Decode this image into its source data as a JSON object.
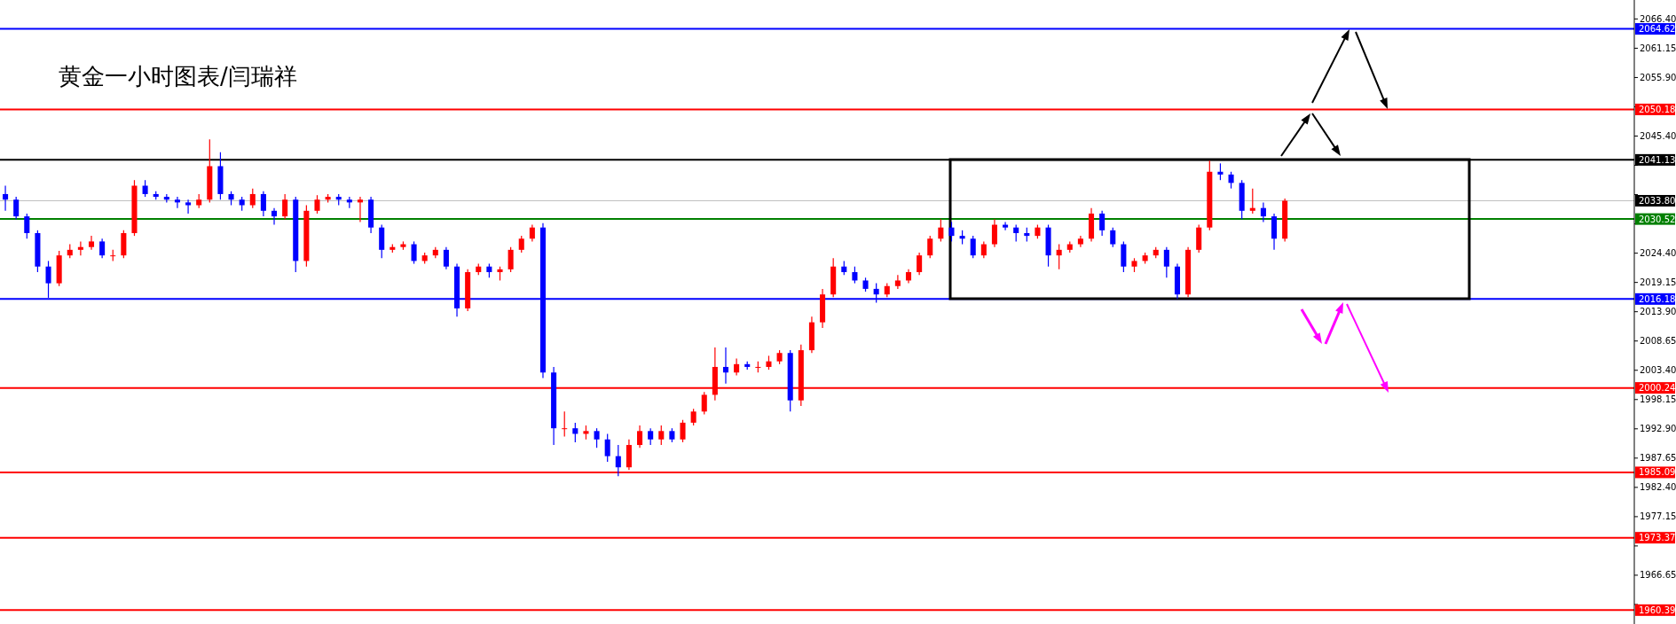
{
  "chart_data": {
    "type": "candlestick",
    "title": "黄金一小时图表/闫瑞祥",
    "categories": [
      null,
      null,
      null,
      null,
      null,
      null,
      null,
      null,
      null,
      null,
      null,
      null,
      null,
      null,
      null,
      null,
      null,
      null,
      null,
      null,
      null,
      null,
      null,
      null,
      null,
      null,
      null,
      null,
      null,
      null,
      null,
      null,
      null,
      null,
      null,
      null,
      null,
      null,
      null,
      null,
      null,
      null,
      null,
      null,
      null,
      null,
      null,
      null,
      null,
      null,
      null,
      null,
      null,
      null,
      null,
      null,
      null,
      null,
      null,
      null,
      null,
      null,
      null,
      null,
      null,
      null,
      null,
      null,
      null,
      null,
      null,
      null,
      null,
      null,
      null,
      null,
      null,
      null,
      null,
      null,
      null,
      null,
      null,
      null,
      null,
      null,
      null,
      null,
      null,
      null,
      null,
      null,
      null,
      null,
      null,
      null,
      null,
      null,
      null,
      null,
      null,
      null,
      null,
      null,
      null,
      null,
      null,
      null,
      null,
      null,
      null,
      null,
      null,
      null,
      null,
      null,
      null,
      null,
      null,
      null,
      null,
      null,
      null,
      null,
      null,
      null,
      null,
      null,
      null,
      null,
      null,
      null,
      null,
      null,
      null,
      null,
      null,
      null,
      null,
      null,
      null,
      null,
      null,
      null,
      null,
      null,
      null,
      null,
      null,
      null,
      null,
      null
    ],
    "ohlc": [
      [
        2035,
        2036.5,
        2032,
        2034
      ],
      [
        2034,
        2034.5,
        2030.5,
        2031
      ],
      [
        2031,
        2031.5,
        2027,
        2028
      ],
      [
        2028,
        2028.5,
        2021,
        2022
      ],
      [
        2022,
        2023,
        2016.4,
        2019
      ],
      [
        2019,
        2024.8,
        2018.5,
        2024
      ],
      [
        2024,
        2026,
        2023.5,
        2025
      ],
      [
        2025,
        2026.5,
        2024,
        2025.5
      ],
      [
        2025.5,
        2027.5,
        2025,
        2026.5
      ],
      [
        2026.5,
        2027,
        2023.5,
        2024
      ],
      [
        2024,
        2025,
        2023,
        2024
      ],
      [
        2024,
        2028.5,
        2023.5,
        2028
      ],
      [
        2028,
        2037.5,
        2027.5,
        2036.5
      ],
      [
        2036.5,
        2037.5,
        2034.5,
        2035
      ],
      [
        2035,
        2035.5,
        2034,
        2034.5
      ],
      [
        2034.5,
        2035,
        2033.5,
        2034
      ],
      [
        2034,
        2034.5,
        2032.5,
        2033.5
      ],
      [
        2033.5,
        2034,
        2031.5,
        2033
      ],
      [
        2033,
        2035,
        2032.5,
        2034
      ],
      [
        2034,
        2044.8,
        2033.5,
        2040
      ],
      [
        2040,
        2042.5,
        2034,
        2035
      ],
      [
        2035,
        2035.5,
        2033,
        2034
      ],
      [
        2034,
        2034.5,
        2032,
        2033
      ],
      [
        2033,
        2036,
        2032.5,
        2035
      ],
      [
        2035,
        2035.5,
        2031,
        2032
      ],
      [
        2032,
        2032.5,
        2029.5,
        2031
      ],
      [
        2031,
        2035,
        2030.5,
        2034
      ],
      [
        2034,
        2034.5,
        2021,
        2023
      ],
      [
        2023,
        2033,
        2022,
        2032
      ],
      [
        2032,
        2034.8,
        2031.5,
        2034
      ],
      [
        2034,
        2035,
        2033.5,
        2034.5
      ],
      [
        2034.5,
        2035,
        2033,
        2034
      ],
      [
        2034,
        2034.5,
        2032.5,
        2033.5
      ],
      [
        2033.5,
        2034.5,
        2030,
        2034
      ],
      [
        2034,
        2034.5,
        2028,
        2029
      ],
      [
        2029,
        2029.5,
        2023.5,
        2025
      ],
      [
        2025,
        2026,
        2024.5,
        2025.5
      ],
      [
        2025.5,
        2026.5,
        2025,
        2026
      ],
      [
        2026,
        2026.5,
        2022.5,
        2023
      ],
      [
        2023,
        2024.5,
        2022.5,
        2024
      ],
      [
        2024,
        2025.5,
        2023.5,
        2025
      ],
      [
        2025,
        2025.5,
        2021.5,
        2022
      ],
      [
        2022,
        2022.5,
        2013,
        2014.5
      ],
      [
        2014.5,
        2021.5,
        2014,
        2021
      ],
      [
        2021,
        2022.5,
        2020.5,
        2022
      ],
      [
        2022,
        2022.5,
        2020,
        2021
      ],
      [
        2021,
        2022,
        2019.5,
        2021.5
      ],
      [
        2021.5,
        2025.5,
        2021,
        2025
      ],
      [
        2025,
        2027.5,
        2024.5,
        2027
      ],
      [
        2027,
        2029.5,
        2026.5,
        2029
      ],
      [
        2029,
        2029.8,
        2002,
        2003
      ],
      [
        2003,
        2004,
        1990,
        1993
      ],
      [
        1993,
        1996,
        1991.5,
        1993
      ],
      [
        1993,
        1994,
        1990.5,
        1992
      ],
      [
        1992,
        1993.5,
        1991,
        1992.5
      ],
      [
        1992.5,
        1993,
        1989.5,
        1991
      ],
      [
        1991,
        1992,
        1987,
        1988
      ],
      [
        1988,
        1990,
        1984.4,
        1986
      ],
      [
        1986,
        1991,
        1985.5,
        1990
      ],
      [
        1990,
        1993.5,
        1989.5,
        1992.5
      ],
      [
        1992.5,
        1993,
        1990,
        1991
      ],
      [
        1991,
        1993.5,
        1990,
        1992.5
      ],
      [
        1992.5,
        1993,
        1990.5,
        1991
      ],
      [
        1991,
        1994.5,
        1990.5,
        1994
      ],
      [
        1994,
        1996.5,
        1993.5,
        1996
      ],
      [
        1996,
        1999.5,
        1995.5,
        1999
      ],
      [
        1999,
        2007.5,
        1998,
        2004
      ],
      [
        2004,
        2007.5,
        2001,
        2003
      ],
      [
        2003,
        2005.5,
        2002.5,
        2004.5
      ],
      [
        2004.5,
        2005,
        2003.5,
        2004
      ],
      [
        2004,
        2005,
        2003,
        2004
      ],
      [
        2004,
        2006,
        2003.5,
        2005
      ],
      [
        2005,
        2007,
        2004.5,
        2006.5
      ],
      [
        2006.5,
        2007,
        1996,
        1998
      ],
      [
        1998,
        2008,
        1997,
        2007
      ],
      [
        2007,
        2013,
        2006.5,
        2012
      ],
      [
        2012,
        2018,
        2011,
        2017
      ],
      [
        2017,
        2023.5,
        2016.5,
        2022
      ],
      [
        2022,
        2023,
        2020.5,
        2021
      ],
      [
        2021,
        2022,
        2019,
        2019.5
      ],
      [
        2019.5,
        2020,
        2017.5,
        2018
      ],
      [
        2018,
        2019,
        2015.5,
        2017
      ],
      [
        2017,
        2019,
        2016.5,
        2018.5
      ],
      [
        2018.5,
        2020.5,
        2018,
        2019.5
      ],
      [
        2019.5,
        2021.5,
        2019,
        2021
      ],
      [
        2021,
        2024.5,
        2020.5,
        2024
      ],
      [
        2024,
        2027.5,
        2023.5,
        2027
      ],
      [
        2027,
        2030.5,
        2026.5,
        2029
      ],
      [
        2029,
        2030,
        2026.5,
        2027.5
      ],
      [
        2027.5,
        2028.5,
        2026,
        2027
      ],
      [
        2027,
        2027.5,
        2023.5,
        2024
      ],
      [
        2024,
        2026.5,
        2023.5,
        2026
      ],
      [
        2026,
        2030.5,
        2025.5,
        2029.5
      ],
      [
        2029.5,
        2030,
        2028.5,
        2029
      ],
      [
        2029,
        2029.5,
        2026.5,
        2028
      ],
      [
        2028,
        2029,
        2026.5,
        2027.5
      ],
      [
        2027.5,
        2029.5,
        2027,
        2029
      ],
      [
        2029,
        2029.5,
        2022,
        2024
      ],
      [
        2024,
        2026,
        2021.5,
        2025
      ],
      [
        2025,
        2026.5,
        2024.5,
        2026
      ],
      [
        2026,
        2027.5,
        2025.5,
        2027
      ],
      [
        2027,
        2032.5,
        2026.5,
        2031.5
      ],
      [
        2031.5,
        2032,
        2027.5,
        2028.5
      ],
      [
        2028.5,
        2029,
        2025.5,
        2026
      ],
      [
        2026,
        2026.5,
        2021,
        2022
      ],
      [
        2022,
        2023.5,
        2021,
        2023
      ],
      [
        2023,
        2024.5,
        2022.5,
        2024
      ],
      [
        2024,
        2025.5,
        2023.5,
        2025
      ],
      [
        2025,
        2025.5,
        2020,
        2022
      ],
      [
        2022,
        2022.5,
        2016.2,
        2017
      ],
      [
        2017,
        2025.5,
        2016.5,
        2025
      ],
      [
        2025,
        2029.5,
        2024.5,
        2029
      ],
      [
        2029,
        2041,
        2028.5,
        2039
      ],
      [
        2039,
        2040.5,
        2037.5,
        2038.5
      ],
      [
        2038.5,
        2039,
        2036,
        2037
      ],
      [
        2037,
        2037.5,
        2030.5,
        2032
      ],
      [
        2032,
        2036,
        2031.5,
        2032.5
      ],
      [
        2032.5,
        2033.5,
        2030,
        2031
      ],
      [
        2031,
        2031.5,
        2025,
        2027
      ],
      [
        2027,
        2034.2,
        2026.5,
        2033.8
      ],
      null,
      null,
      null,
      null,
      null,
      null,
      null,
      null,
      null,
      null,
      null,
      null,
      null,
      null,
      null,
      null,
      null,
      null,
      null,
      null,
      null,
      null,
      null,
      null,
      null,
      null,
      null,
      null,
      null,
      null,
      null,
      null
    ],
    "ylim": [
      1957.9,
      2069.8
    ],
    "yticks": [
      {
        "value": 2066.4,
        "label": "2066.40"
      },
      {
        "value": 2061.15,
        "label": "2061.15"
      },
      {
        "value": 2055.9,
        "label": "2055.90"
      },
      {
        "value": 2050.65,
        "label": null
      },
      {
        "value": 2045.4,
        "label": "2045.40"
      },
      {
        "value": 2040.15,
        "label": null
      },
      {
        "value": 2034.9,
        "label": null
      },
      {
        "value": 2029.65,
        "label": null
      },
      {
        "value": 2024.4,
        "label": "2024.40"
      },
      {
        "value": 2019.15,
        "label": "2019.15"
      },
      {
        "value": 2013.9,
        "label": "2013.90"
      },
      {
        "value": 2008.65,
        "label": "2008.65"
      },
      {
        "value": 2003.4,
        "label": "2003.40"
      },
      {
        "value": 1998.15,
        "label": "1998.15"
      },
      {
        "value": 1992.9,
        "label": "1992.90"
      },
      {
        "value": 1987.65,
        "label": "1987.65"
      },
      {
        "value": 1982.4,
        "label": "1982.40"
      },
      {
        "value": 1977.15,
        "label": "1977.15"
      },
      {
        "value": 1971.9,
        "label": null
      },
      {
        "value": 1966.65,
        "label": "1966.65"
      },
      {
        "value": 1961.4,
        "label": null
      }
    ],
    "ref_lines": [
      {
        "axis": "y",
        "value": 2064.62,
        "label": "2064.62",
        "color": "#0000ff"
      },
      {
        "axis": "y",
        "value": 2050.18,
        "label": "2050.18",
        "color": "#ff0000"
      },
      {
        "axis": "y",
        "value": 2041.13,
        "label": "2041.13",
        "color": "#000000"
      },
      {
        "axis": "y",
        "value": 2033.8,
        "label": "2033.80",
        "color": "#c0c0c0"
      },
      {
        "axis": "y",
        "value": 2030.52,
        "label": "2030.52",
        "color": "#008000"
      },
      {
        "axis": "y",
        "value": 2016.18,
        "label": "2016.18",
        "color": "#0000ff"
      },
      {
        "axis": "y",
        "value": 2000.24,
        "label": "2000.24",
        "color": "#ff0000"
      },
      {
        "axis": "y",
        "value": 1985.09,
        "label": "1985.09",
        "color": "#ff0000"
      },
      {
        "axis": "y",
        "value": 1973.37,
        "label": "1973.37",
        "color": "#ff0000"
      },
      {
        "axis": "y",
        "value": 1960.39,
        "label": "1960.39",
        "color": "#ff0000"
      }
    ],
    "tick_labels": "y"
  }
}
